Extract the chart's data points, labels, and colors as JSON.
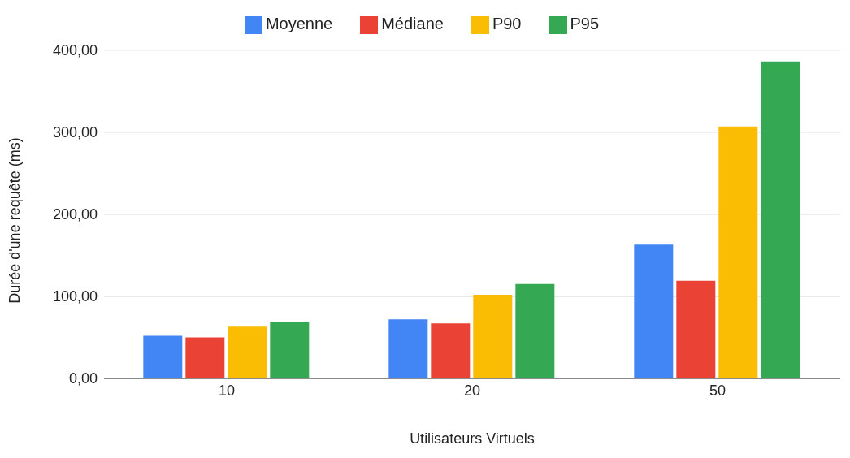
{
  "chart_data": {
    "type": "bar",
    "xlabel": "Utilisateurs Virtuels",
    "ylabel": "Durée d'une requête (ms)",
    "categories": [
      "10",
      "20",
      "50"
    ],
    "series": [
      {
        "name": "Moyenne",
        "color": "#4285f4",
        "values": [
          52,
          72,
          163
        ]
      },
      {
        "name": "Médiane",
        "color": "#ea4335",
        "values": [
          50,
          67,
          119
        ]
      },
      {
        "name": "P90",
        "color": "#fbbc04",
        "values": [
          63,
          102,
          307
        ]
      },
      {
        "name": "P95",
        "color": "#34a853",
        "values": [
          69,
          115,
          386
        ]
      }
    ],
    "ylim": [
      0,
      400
    ],
    "yticks": [
      {
        "value": 0,
        "label": "0,00"
      },
      {
        "value": 100,
        "label": "100,00"
      },
      {
        "value": 200,
        "label": "200,00"
      },
      {
        "value": 300,
        "label": "300,00"
      },
      {
        "value": 400,
        "label": "400,00"
      }
    ],
    "grid": "y",
    "legend": "top"
  }
}
